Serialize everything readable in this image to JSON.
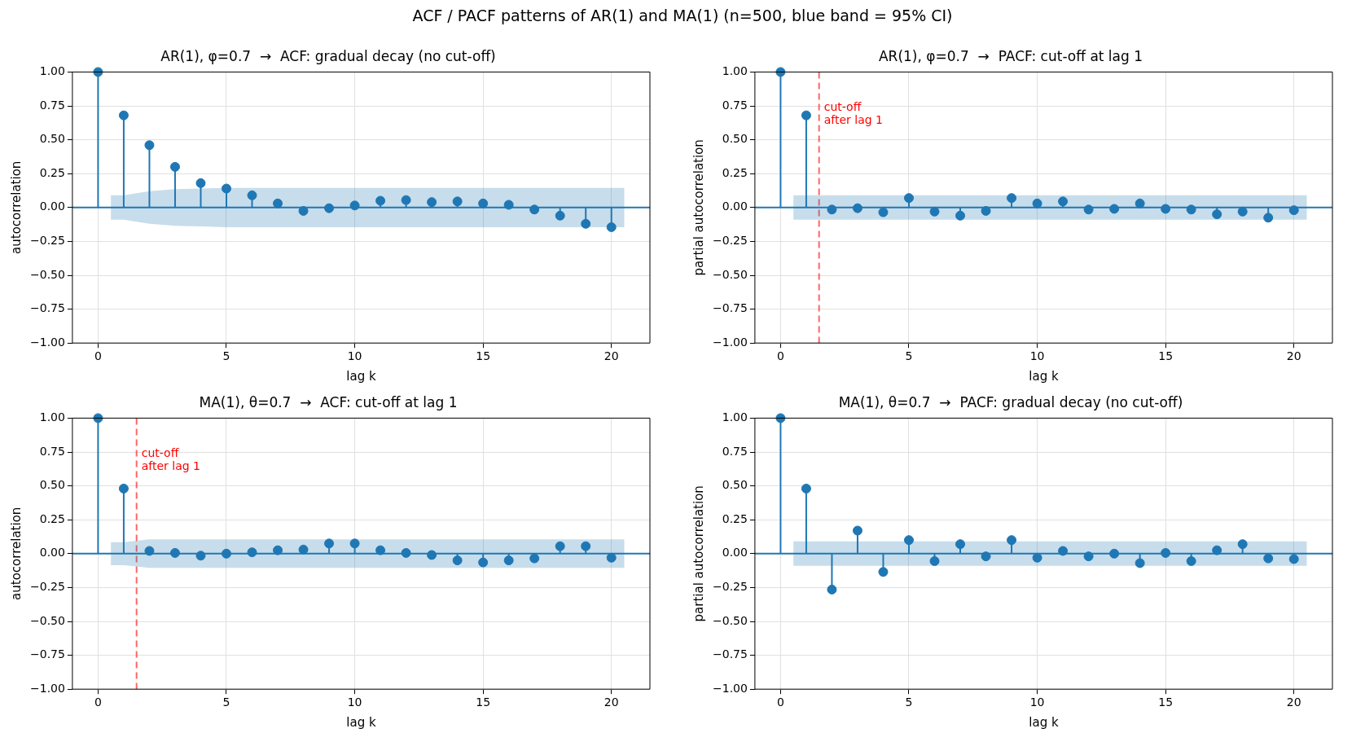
{
  "chart_data": [
    {
      "type": "other",
      "title": "ACF / PACF patterns of AR(1) and MA(1)  (n=500, blue band = 95% CI)"
    },
    {
      "type": "lollipop",
      "title": "AR(1), φ=0.7  →  ACF: gradual decay (no cut-off)",
      "xlabel": "lag k",
      "ylabel": "autocorrelation",
      "x": [
        0,
        1,
        2,
        3,
        4,
        5,
        6,
        7,
        8,
        9,
        10,
        11,
        12,
        13,
        14,
        15,
        16,
        17,
        18,
        19,
        20
      ],
      "series": [
        {
          "color": "#1f77b4",
          "marker": "circle",
          "values": [
            1,
            0.68,
            0.46,
            0.3,
            0.18,
            0.14,
            0.09,
            0.03,
            -0.025,
            -0.005,
            0.015,
            0.05,
            0.055,
            0.04,
            0.045,
            0.03,
            0.02,
            -0.015,
            -0.06,
            -0.12,
            -0.145
          ]
        },
        {
          "type": "line",
          "color": "#1f77b4",
          "marker": "none",
          "x": [
            -1,
            0.5,
            0.5,
            1,
            2,
            3,
            4,
            5,
            20.5,
            20.5,
            21.5
          ],
          "values": [
            0,
            0,
            0,
            0,
            0,
            0,
            0,
            0,
            0,
            0,
            0
          ],
          "lower": [
            0,
            0,
            -0.09,
            -0.09,
            -0.12,
            -0.135,
            -0.14,
            -0.145,
            -0.145,
            0,
            0
          ],
          "upper": [
            0,
            0,
            0.09,
            0.09,
            0.12,
            0.135,
            0.14,
            0.145,
            0.145,
            0,
            0
          ]
        }
      ],
      "xlim": [
        -1,
        21.5
      ],
      "xticks": [
        0,
        5,
        10,
        15,
        20
      ],
      "ylim": [
        -1,
        1
      ],
      "yticks": [
        {
          "value": -1,
          "label": "−1.00"
        },
        {
          "value": -0.75,
          "label": "−0.75"
        },
        {
          "value": -0.5,
          "label": "−0.50"
        },
        {
          "value": -0.25,
          "label": "−0.25"
        },
        {
          "value": 0,
          "label": "0.00"
        },
        {
          "value": 0.25,
          "label": "0.25"
        },
        {
          "value": 0.5,
          "label": "0.50"
        },
        {
          "value": 0.75,
          "label": "0.75"
        },
        {
          "value": 1,
          "label": "1.00"
        }
      ],
      "grid": true
    },
    {
      "type": "lollipop",
      "title": "AR(1), φ=0.7  →  PACF: cut-off at lag 1",
      "xlabel": "lag k",
      "ylabel": "partial autocorrelation",
      "x": [
        0,
        1,
        2,
        3,
        4,
        5,
        6,
        7,
        8,
        9,
        10,
        11,
        12,
        13,
        14,
        15,
        16,
        17,
        18,
        19,
        20
      ],
      "series": [
        {
          "color": "#1f77b4",
          "marker": "circle",
          "values": [
            1,
            0.68,
            -0.015,
            -0.005,
            -0.035,
            0.07,
            -0.03,
            -0.06,
            -0.025,
            0.07,
            0.03,
            0.045,
            -0.015,
            -0.01,
            0.03,
            -0.01,
            -0.015,
            -0.05,
            -0.03,
            -0.075,
            -0.02
          ]
        },
        {
          "type": "line",
          "color": "#1f77b4",
          "marker": "none",
          "x": [
            -1,
            0.5,
            0.5,
            20.5,
            20.5,
            21.5
          ],
          "values": [
            0,
            0,
            0,
            0,
            0,
            0
          ],
          "lower": [
            0,
            0,
            -0.09,
            -0.09,
            0,
            0
          ],
          "upper": [
            0,
            0,
            0.09,
            0.09,
            0,
            0
          ]
        }
      ],
      "xlim": [
        -1,
        21.5
      ],
      "xticks": [
        0,
        5,
        10,
        15,
        20
      ],
      "ylim": [
        -1,
        1
      ],
      "yticks": [
        {
          "value": -1,
          "label": "−1.00"
        },
        {
          "value": -0.75,
          "label": "−0.75"
        },
        {
          "value": -0.5,
          "label": "−0.50"
        },
        {
          "value": -0.25,
          "label": "−0.25"
        },
        {
          "value": 0,
          "label": "0.00"
        },
        {
          "value": 0.25,
          "label": "0.25"
        },
        {
          "value": 0.5,
          "label": "0.50"
        },
        {
          "value": 0.75,
          "label": "0.75"
        },
        {
          "value": 1,
          "label": "1.00"
        }
      ],
      "grid": true,
      "ref_lines": [
        {
          "axis": "x",
          "value": 1.5,
          "label": "cut-off\nafter lag 1",
          "color": "#ff0000",
          "line_style": "dashed"
        }
      ]
    },
    {
      "type": "lollipop",
      "title": "MA(1), θ=0.7  →  ACF: cut-off at lag 1",
      "xlabel": "lag k",
      "ylabel": "autocorrelation",
      "x": [
        0,
        1,
        2,
        3,
        4,
        5,
        6,
        7,
        8,
        9,
        10,
        11,
        12,
        13,
        14,
        15,
        16,
        17,
        18,
        19,
        20
      ],
      "series": [
        {
          "color": "#1f77b4",
          "marker": "circle",
          "values": [
            1,
            0.48,
            0.02,
            0.005,
            -0.015,
            0,
            0.01,
            0.025,
            0.03,
            0.075,
            0.075,
            0.025,
            0.005,
            -0.01,
            -0.05,
            -0.065,
            -0.05,
            -0.035,
            0.055,
            0.055,
            -0.03
          ]
        },
        {
          "type": "line",
          "color": "#1f77b4",
          "marker": "none",
          "x": [
            -1,
            0.5,
            0.5,
            1,
            2,
            20.5,
            20.5,
            21.5
          ],
          "values": [
            0,
            0,
            0,
            0,
            0,
            0,
            0,
            0
          ],
          "lower": [
            0,
            0,
            -0.085,
            -0.085,
            -0.105,
            -0.105,
            0,
            0
          ],
          "upper": [
            0,
            0,
            0.085,
            0.085,
            0.105,
            0.105,
            0,
            0
          ]
        }
      ],
      "xlim": [
        -1,
        21.5
      ],
      "xticks": [
        0,
        5,
        10,
        15,
        20
      ],
      "ylim": [
        -1,
        1
      ],
      "yticks": [
        {
          "value": -1,
          "label": "−1.00"
        },
        {
          "value": -0.75,
          "label": "−0.75"
        },
        {
          "value": -0.5,
          "label": "−0.50"
        },
        {
          "value": -0.25,
          "label": "−0.25"
        },
        {
          "value": 0,
          "label": "0.00"
        },
        {
          "value": 0.25,
          "label": "0.25"
        },
        {
          "value": 0.5,
          "label": "0.50"
        },
        {
          "value": 0.75,
          "label": "0.75"
        },
        {
          "value": 1,
          "label": "1.00"
        }
      ],
      "grid": true,
      "ref_lines": [
        {
          "axis": "x",
          "value": 1.5,
          "label": "cut-off\nafter lag 1",
          "color": "#ff0000",
          "line_style": "dashed"
        }
      ]
    },
    {
      "type": "lollipop",
      "title": "MA(1), θ=0.7  →  PACF: gradual decay (no cut-off)",
      "xlabel": "lag k",
      "ylabel": "partial autocorrelation",
      "x": [
        0,
        1,
        2,
        3,
        4,
        5,
        6,
        7,
        8,
        9,
        10,
        11,
        12,
        13,
        14,
        15,
        16,
        17,
        18,
        19,
        20
      ],
      "series": [
        {
          "color": "#1f77b4",
          "marker": "circle",
          "values": [
            1,
            0.48,
            -0.265,
            0.17,
            -0.135,
            0.1,
            -0.055,
            0.07,
            -0.02,
            0.1,
            -0.03,
            0.02,
            -0.02,
            0,
            -0.07,
            0.005,
            -0.055,
            0.025,
            0.07,
            -0.035,
            -0.04
          ]
        },
        {
          "type": "line",
          "color": "#1f77b4",
          "marker": "none",
          "x": [
            -1,
            0.5,
            0.5,
            20.5,
            20.5,
            21.5
          ],
          "values": [
            0,
            0,
            0,
            0,
            0,
            0
          ],
          "lower": [
            0,
            0,
            -0.09,
            -0.09,
            0,
            0
          ],
          "upper": [
            0,
            0,
            0.09,
            0.09,
            0,
            0
          ]
        }
      ],
      "xlim": [
        -1,
        21.5
      ],
      "xticks": [
        0,
        5,
        10,
        15,
        20
      ],
      "ylim": [
        -1,
        1
      ],
      "yticks": [
        {
          "value": -1,
          "label": "−1.00"
        },
        {
          "value": -0.75,
          "label": "−0.75"
        },
        {
          "value": -0.5,
          "label": "−0.50"
        },
        {
          "value": -0.25,
          "label": "−0.25"
        },
        {
          "value": 0,
          "label": "0.00"
        },
        {
          "value": 0.25,
          "label": "0.25"
        },
        {
          "value": 0.5,
          "label": "0.50"
        },
        {
          "value": 0.75,
          "label": "0.75"
        },
        {
          "value": 1,
          "label": "1.00"
        }
      ],
      "grid": true
    }
  ]
}
